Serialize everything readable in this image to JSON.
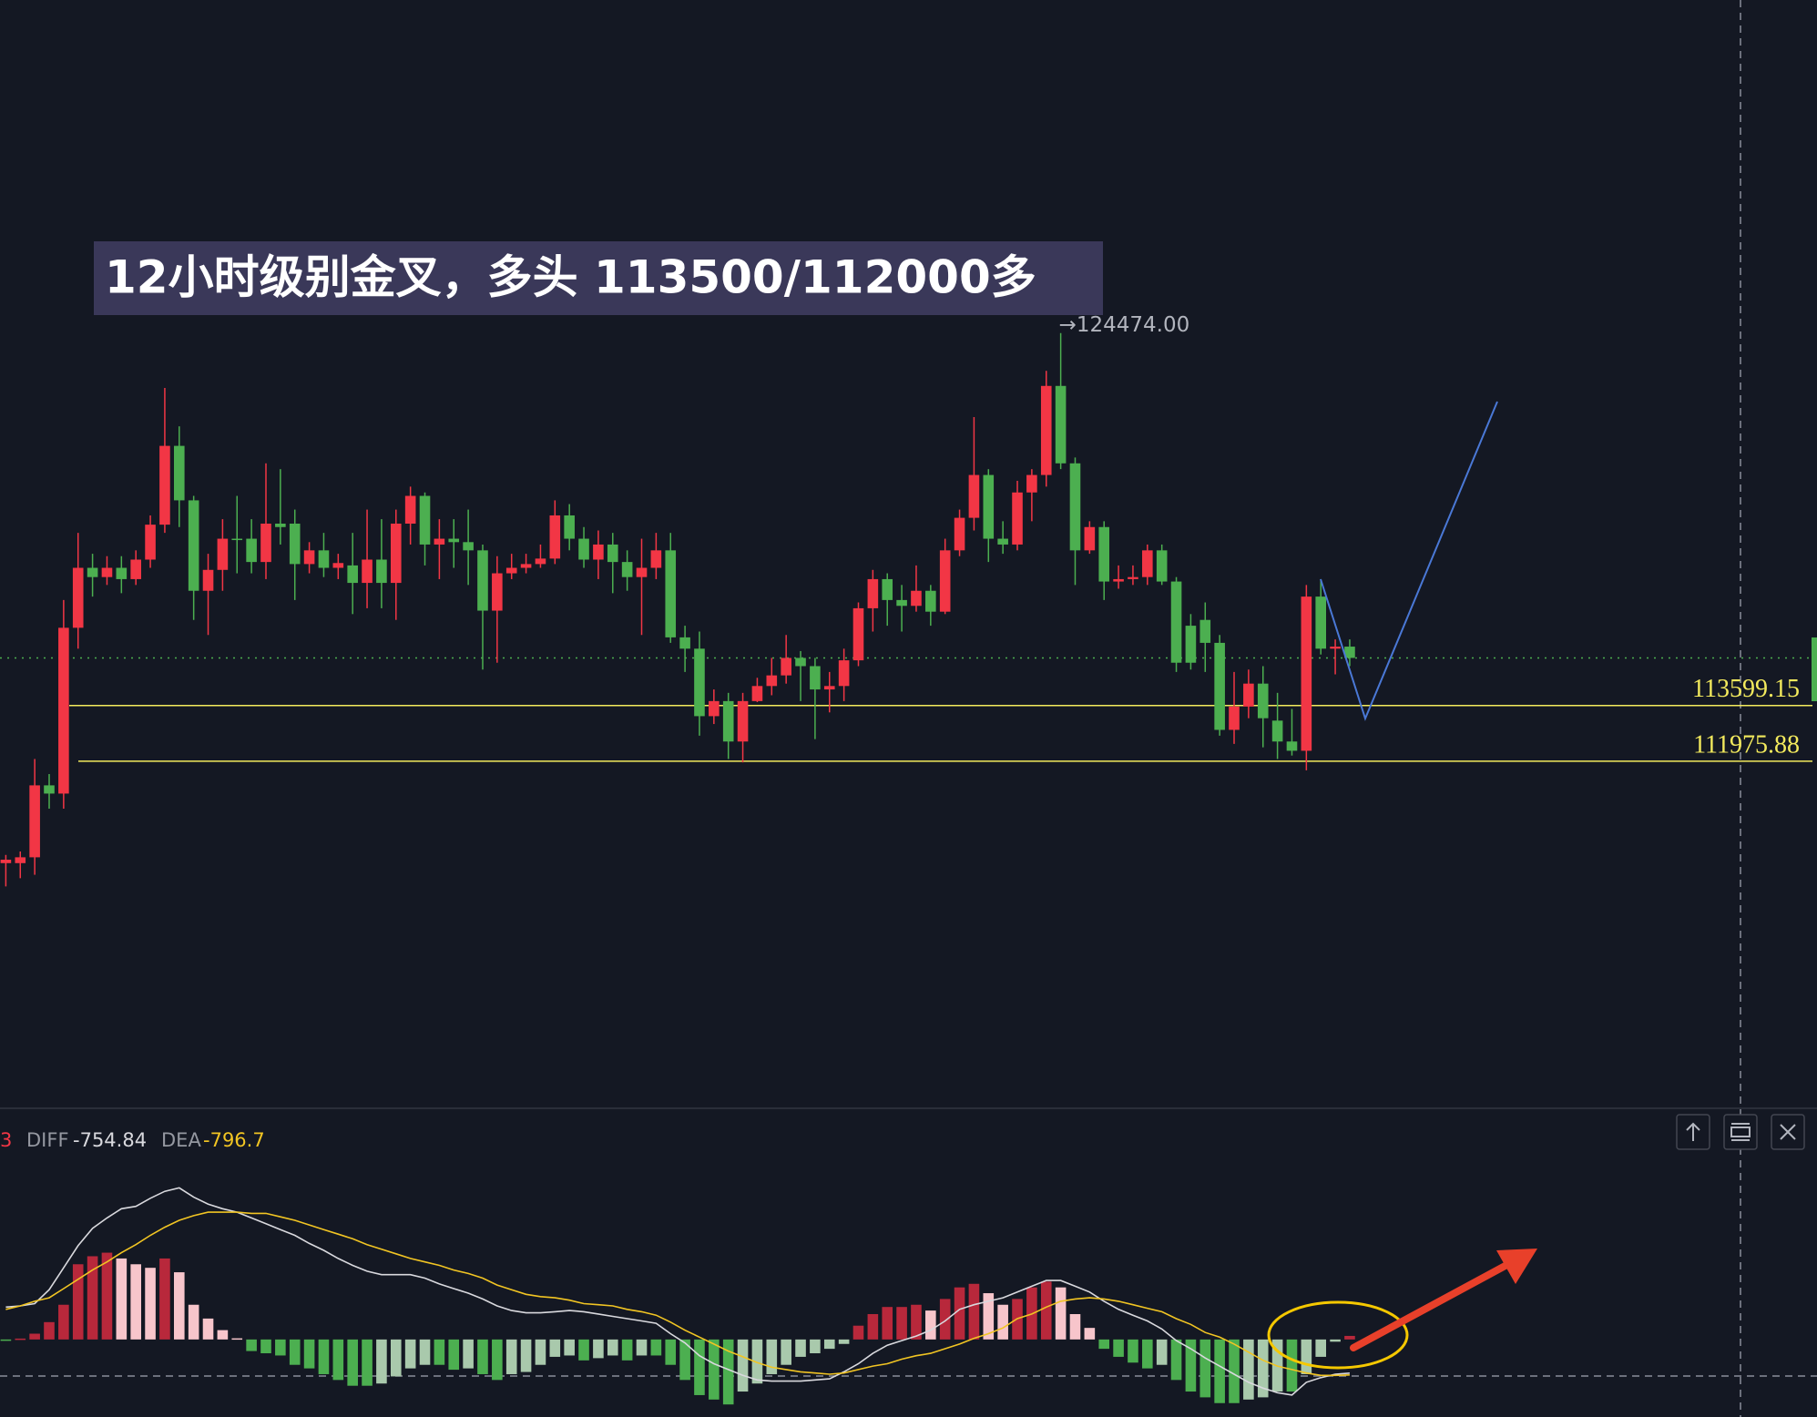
{
  "chart_data": [
    {
      "type": "candlestick",
      "title": "12小时级别金叉，多头 113500/112000多",
      "high_label": "→124474.00",
      "up_color": "#f23645",
      "down_color": "#4caf50",
      "ylim": [
        101897,
        134195
      ],
      "levels": [
        113599.15,
        111975.88
      ],
      "level_color": "#f3ea5d",
      "price_line": 114990,
      "price_line_color": "#4caf50",
      "ohlc": [
        [
          109000,
          109240,
          108320,
          109100
        ],
        [
          109000,
          109340,
          108560,
          109170
        ],
        [
          109170,
          112040,
          108660,
          111270
        ],
        [
          111270,
          111600,
          110590,
          111030
        ],
        [
          111030,
          116680,
          110590,
          115870
        ],
        [
          115870,
          118640,
          115260,
          117620
        ],
        [
          117620,
          118030,
          116780,
          117350
        ],
        [
          117350,
          117960,
          117120,
          117620
        ],
        [
          117620,
          117960,
          116880,
          117290
        ],
        [
          117290,
          118130,
          117120,
          117860
        ],
        [
          117860,
          119150,
          117620,
          118880
        ],
        [
          118880,
          122870,
          118640,
          121180
        ],
        [
          121180,
          121750,
          118810,
          119590
        ],
        [
          119590,
          119720,
          116100,
          116950
        ],
        [
          116950,
          118030,
          115660,
          117560
        ],
        [
          117560,
          119040,
          116950,
          118470
        ],
        [
          118470,
          119720,
          117460,
          118440
        ],
        [
          118470,
          119040,
          117460,
          117790
        ],
        [
          117790,
          120670,
          117290,
          118910
        ],
        [
          118910,
          120500,
          118300,
          118810
        ],
        [
          118910,
          119320,
          116680,
          117730
        ],
        [
          117730,
          118370,
          117460,
          118130
        ],
        [
          118130,
          118640,
          117350,
          117620
        ],
        [
          117620,
          118030,
          117290,
          117760
        ],
        [
          117690,
          118640,
          116270,
          117180
        ],
        [
          117180,
          119320,
          116440,
          117860
        ],
        [
          117860,
          119040,
          116440,
          117180
        ],
        [
          117180,
          119320,
          116100,
          118910
        ],
        [
          118910,
          119990,
          118300,
          119720
        ],
        [
          119720,
          119820,
          117690,
          118300
        ],
        [
          118300,
          119040,
          117290,
          118470
        ],
        [
          118470,
          119040,
          117620,
          118370
        ],
        [
          118370,
          119320,
          117120,
          118130
        ],
        [
          118130,
          118300,
          114650,
          116370
        ],
        [
          116370,
          117960,
          114850,
          117460
        ],
        [
          117460,
          118030,
          117290,
          117620
        ],
        [
          117620,
          118030,
          117460,
          117730
        ],
        [
          117730,
          118300,
          117620,
          117890
        ],
        [
          117890,
          119590,
          117730,
          119150
        ],
        [
          119150,
          119480,
          118130,
          118470
        ],
        [
          118470,
          118810,
          117620,
          117860
        ],
        [
          117860,
          118710,
          117290,
          118300
        ],
        [
          118300,
          118640,
          116880,
          117790
        ],
        [
          117790,
          118130,
          116950,
          117350
        ],
        [
          117350,
          118470,
          115660,
          117620
        ],
        [
          117620,
          118640,
          117290,
          118130
        ],
        [
          118130,
          118640,
          115430,
          115590
        ],
        [
          115590,
          115930,
          114580,
          115260
        ],
        [
          115260,
          115760,
          112720,
          113290
        ],
        [
          113290,
          114070,
          113060,
          113730
        ],
        [
          113730,
          113970,
          112040,
          112550
        ],
        [
          112550,
          113970,
          111940,
          113730
        ],
        [
          113730,
          114410,
          113700,
          114170
        ],
        [
          114170,
          114990,
          113900,
          114480
        ],
        [
          114480,
          115660,
          114240,
          114990
        ],
        [
          114990,
          115190,
          113730,
          114750
        ],
        [
          114750,
          114990,
          112620,
          114070
        ],
        [
          114070,
          114580,
          113400,
          114170
        ],
        [
          114170,
          115260,
          113730,
          114920
        ],
        [
          114920,
          116610,
          114750,
          116440
        ],
        [
          116440,
          117560,
          115760,
          117290
        ],
        [
          117290,
          117460,
          115930,
          116680
        ],
        [
          116680,
          117120,
          115760,
          116510
        ],
        [
          116510,
          117690,
          116340,
          116950
        ],
        [
          116950,
          117120,
          115930,
          116340
        ],
        [
          116340,
          118470,
          116270,
          118130
        ],
        [
          118130,
          119320,
          117960,
          119080
        ],
        [
          119080,
          122020,
          118710,
          120330
        ],
        [
          120330,
          120500,
          117790,
          118470
        ],
        [
          118470,
          118980,
          118030,
          118300
        ],
        [
          118300,
          120160,
          118130,
          119820
        ],
        [
          119820,
          120500,
          118980,
          120330
        ],
        [
          120330,
          123370,
          119990,
          122930
        ],
        [
          122930,
          124474,
          120500,
          120670
        ],
        [
          120670,
          120840,
          117120,
          118130
        ],
        [
          118130,
          118980,
          118030,
          118810
        ],
        [
          118810,
          118980,
          116680,
          117220
        ],
        [
          117220,
          117690,
          117010,
          117290
        ],
        [
          117290,
          117690,
          117120,
          117350
        ],
        [
          117350,
          118300,
          117120,
          118130
        ],
        [
          118130,
          118300,
          117120,
          117220
        ],
        [
          117220,
          117350,
          114580,
          114850
        ],
        [
          115930,
          116270,
          114650,
          114850
        ],
        [
          116100,
          116610,
          114580,
          115430
        ],
        [
          115430,
          115660,
          112720,
          112890
        ],
        [
          112890,
          114580,
          112480,
          113570
        ],
        [
          113570,
          114650,
          113230,
          114240
        ],
        [
          114240,
          114750,
          112380,
          113230
        ],
        [
          113160,
          113970,
          112040,
          112550
        ],
        [
          112550,
          113500,
          112140,
          112280
        ],
        [
          112280,
          117120,
          111710,
          116780
        ],
        [
          116780,
          117290,
          115090,
          115260
        ],
        [
          115260,
          115530,
          114510,
          115320
        ],
        [
          115320,
          115530,
          114750,
          114990
        ]
      ]
    },
    {
      "type": "macd",
      "legend_fragment": "3",
      "ylim": [
        -1742,
        5174
      ],
      "series": [
        {
          "name": "DIFF",
          "color": "#d9d9de",
          "values": [
            728,
            754,
            806,
            1118,
            1612,
            2106,
            2496,
            2730,
            2938,
            2990,
            3172,
            3328,
            3406,
            3198,
            3042,
            2938,
            2860,
            2730,
            2600,
            2470,
            2340,
            2158,
            2002,
            1820,
            1664,
            1534,
            1456,
            1456,
            1456,
            1378,
            1248,
            1144,
            1040,
            910,
            754,
            650,
            598,
            598,
            624,
            650,
            624,
            572,
            520,
            468,
            416,
            364,
            130,
            -78,
            -364,
            -546,
            -676,
            -806,
            -910,
            -936,
            -936,
            -936,
            -910,
            -884,
            -728,
            -546,
            -312,
            -130,
            -26,
            78,
            208,
            416,
            676,
            780,
            858,
            936,
            1066,
            1196,
            1326,
            1326,
            1196,
            1066,
            858,
            676,
            546,
            416,
            234,
            -26,
            -208,
            -416,
            -598,
            -780,
            -962,
            -1092,
            -1196,
            -1248,
            -962,
            -858,
            -780,
            -754.84
          ]
        },
        {
          "name": "DEA",
          "color": "#f2c523",
          "values": [
            676,
            754,
            858,
            936,
            1144,
            1352,
            1560,
            1742,
            1950,
            2132,
            2340,
            2522,
            2678,
            2782,
            2860,
            2860,
            2860,
            2834,
            2834,
            2756,
            2678,
            2574,
            2470,
            2366,
            2262,
            2132,
            2028,
            1924,
            1820,
            1742,
            1664,
            1560,
            1482,
            1378,
            1222,
            1118,
            1014,
            962,
            936,
            884,
            806,
            780,
            754,
            676,
            624,
            546,
            390,
            208,
            52,
            -104,
            -260,
            -390,
            -520,
            -624,
            -676,
            -728,
            -754,
            -780,
            -754,
            -676,
            -598,
            -546,
            -442,
            -364,
            -312,
            -208,
            -104,
            26,
            130,
            260,
            468,
            572,
            728,
            858,
            910,
            936,
            910,
            858,
            780,
            702,
            624,
            468,
            338,
            156,
            52,
            -104,
            -286,
            -468,
            -598,
            -676,
            -754,
            -806,
            -806,
            -796.7
          ]
        }
      ],
      "histogram": {
        "values": [
          -10,
          20,
          130,
          390,
          780,
          1690,
          1870,
          1950,
          1820,
          1690,
          1610,
          1820,
          1510,
          780,
          470,
          210,
          26,
          -260,
          -310,
          -360,
          -570,
          -650,
          -780,
          -910,
          -1040,
          -1040,
          -990,
          -830,
          -650,
          -570,
          -570,
          -680,
          -650,
          -780,
          -910,
          -780,
          -730,
          -570,
          -390,
          -360,
          -470,
          -420,
          -360,
          -470,
          -360,
          -360,
          -570,
          -910,
          -1250,
          -1350,
          -1460,
          -1170,
          -990,
          -780,
          -570,
          -390,
          -310,
          -210,
          -100,
          310,
          570,
          730,
          730,
          780,
          650,
          910,
          1170,
          1250,
          1040,
          780,
          910,
          1170,
          1300,
          1170,
          570,
          260,
          -210,
          -390,
          -520,
          -650,
          -570,
          -910,
          -1170,
          -1300,
          -1430,
          -1430,
          -1350,
          -1300,
          -1170,
          -1170,
          -780,
          -390,
          -50,
          80
        ],
        "colors": {
          "up_grow": "#b8283b",
          "up_fall": "#f7c5cb",
          "down_grow": "#4caf50",
          "down_fall": "#a9c9ac"
        }
      }
    }
  ]
}
